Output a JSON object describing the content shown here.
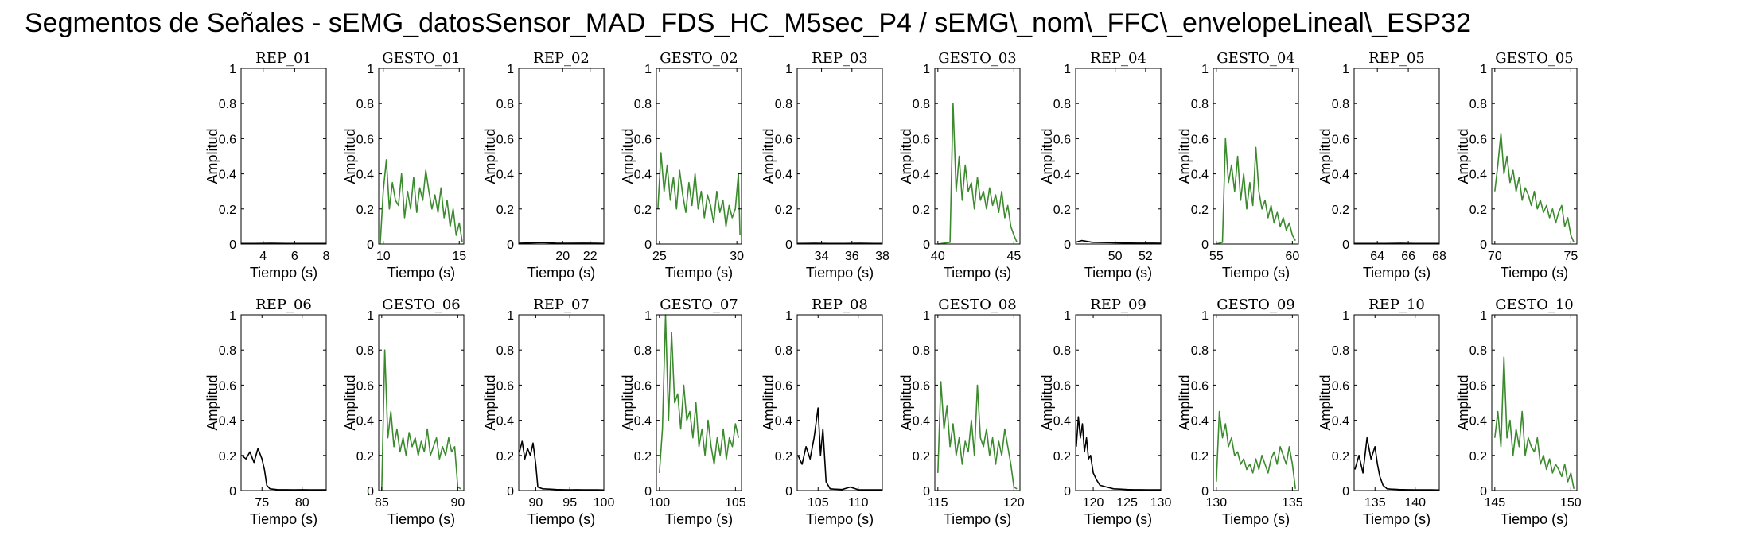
{
  "title": "Segmentos de Señales - sEMG_datosSensor_MAD_FDS_HC_M5sec_P4 / sEMG\\_nom\\_FFC\\_envelopeLineal\\_ESP32",
  "colors": {
    "rep": "#000000",
    "gesto": "#3b8a2e",
    "axes": "#000000"
  },
  "chart_data": [
    {
      "type": "line",
      "title": "REP_01",
      "xlabel": "Tiempo (s)",
      "ylabel": "Amplitud",
      "xlim": [
        2.6,
        8
      ],
      "xticks": [
        4,
        6,
        8
      ],
      "ylim": [
        0,
        1
      ],
      "yticks": [
        0,
        0.2,
        0.4,
        0.6,
        0.8,
        1
      ],
      "color": "rep",
      "x": [
        2.6,
        3.5,
        4.5,
        5.5,
        6.5,
        7.5,
        8
      ],
      "y": [
        0.003,
        0.003,
        0.004,
        0.003,
        0.003,
        0.003,
        0.003
      ]
    },
    {
      "type": "line",
      "title": "GESTO_01",
      "xlabel": "Tiempo (s)",
      "ylabel": "Amplitud",
      "xlim": [
        9.7,
        15.3
      ],
      "xticks": [
        10,
        15
      ],
      "ylim": [
        0,
        1
      ],
      "yticks": [
        0,
        0.2,
        0.4,
        0.6,
        0.8,
        1
      ],
      "color": "gesto",
      "x": [
        9.8,
        10,
        10.2,
        10.4,
        10.6,
        10.8,
        11,
        11.2,
        11.4,
        11.6,
        11.8,
        12,
        12.2,
        12.4,
        12.6,
        12.8,
        13,
        13.2,
        13.4,
        13.6,
        13.8,
        14,
        14.2,
        14.4,
        14.6,
        14.8,
        15,
        15.2
      ],
      "y": [
        0,
        0.3,
        0.48,
        0.2,
        0.35,
        0.25,
        0.22,
        0.4,
        0.15,
        0.3,
        0.2,
        0.38,
        0.18,
        0.32,
        0.25,
        0.42,
        0.3,
        0.2,
        0.28,
        0.18,
        0.32,
        0.15,
        0.25,
        0.1,
        0.2,
        0.05,
        0.12,
        0.01
      ]
    },
    {
      "type": "line",
      "title": "REP_02",
      "xlabel": "Tiempo (s)",
      "ylabel": "Amplitud",
      "xlim": [
        16.8,
        23
      ],
      "xticks": [
        20,
        22
      ],
      "ylim": [
        0,
        1
      ],
      "yticks": [
        0,
        0.2,
        0.4,
        0.6,
        0.8,
        1
      ],
      "color": "rep",
      "x": [
        16.8,
        17.5,
        18.5,
        19.5,
        20.5,
        21.5,
        22.5,
        23
      ],
      "y": [
        0.004,
        0.006,
        0.008,
        0.005,
        0.004,
        0.005,
        0.004,
        0.003
      ]
    },
    {
      "type": "line",
      "title": "GESTO_02",
      "xlabel": "Tiempo (s)",
      "ylabel": "Amplitud",
      "xlim": [
        24.8,
        30.3
      ],
      "xticks": [
        25,
        30
      ],
      "ylim": [
        0,
        1
      ],
      "yticks": [
        0,
        0.2,
        0.4,
        0.6,
        0.8,
        1
      ],
      "color": "gesto",
      "x": [
        24.9,
        25.1,
        25.3,
        25.5,
        25.7,
        25.9,
        26.1,
        26.3,
        26.5,
        26.7,
        26.9,
        27.1,
        27.3,
        27.5,
        27.7,
        27.9,
        28.1,
        28.3,
        28.5,
        28.7,
        28.9,
        29.1,
        29.3,
        29.5,
        29.7,
        29.9,
        30.1,
        30.2
      ],
      "y": [
        0.2,
        0.52,
        0.3,
        0.45,
        0.25,
        0.38,
        0.2,
        0.42,
        0.28,
        0.18,
        0.35,
        0.22,
        0.4,
        0.2,
        0.3,
        0.15,
        0.28,
        0.22,
        0.12,
        0.3,
        0.18,
        0.25,
        0.1,
        0.22,
        0.15,
        0.2,
        0.4,
        0.05
      ]
    },
    {
      "type": "line",
      "title": "REP_03",
      "xlabel": "Tiempo (s)",
      "ylabel": "Amplitud",
      "xlim": [
        32.4,
        38
      ],
      "xticks": [
        34,
        36,
        38
      ],
      "ylim": [
        0,
        1
      ],
      "yticks": [
        0,
        0.2,
        0.4,
        0.6,
        0.8,
        1
      ],
      "color": "rep",
      "x": [
        32.4,
        33.5,
        34.5,
        35.5,
        36.5,
        37.5,
        38
      ],
      "y": [
        0.003,
        0.004,
        0.003,
        0.003,
        0.004,
        0.003,
        0.003
      ]
    },
    {
      "type": "line",
      "title": "GESTO_03",
      "xlabel": "Tiempo (s)",
      "ylabel": "Amplitud",
      "xlim": [
        39.8,
        45.4
      ],
      "xticks": [
        40,
        45
      ],
      "ylim": [
        0,
        1
      ],
      "yticks": [
        0,
        0.2,
        0.4,
        0.6,
        0.8,
        1
      ],
      "color": "gesto",
      "x": [
        40,
        40.8,
        41,
        41.2,
        41.4,
        41.6,
        41.8,
        42,
        42.2,
        42.4,
        42.6,
        42.8,
        43,
        43.2,
        43.4,
        43.6,
        43.8,
        44,
        44.2,
        44.4,
        44.6,
        44.8,
        45,
        45.2
      ],
      "y": [
        0,
        0.01,
        0.8,
        0.3,
        0.5,
        0.25,
        0.45,
        0.3,
        0.35,
        0.2,
        0.38,
        0.25,
        0.3,
        0.2,
        0.32,
        0.22,
        0.28,
        0.18,
        0.3,
        0.15,
        0.22,
        0.1,
        0.05,
        0.01
      ]
    },
    {
      "type": "line",
      "title": "REP_04",
      "xlabel": "Tiempo (s)",
      "ylabel": "Amplitud",
      "xlim": [
        47.4,
        53
      ],
      "xticks": [
        50,
        52
      ],
      "ylim": [
        0,
        1
      ],
      "yticks": [
        0,
        0.2,
        0.4,
        0.6,
        0.8,
        1
      ],
      "color": "rep",
      "x": [
        47.4,
        47.8,
        48.5,
        49.5,
        50.5,
        51.5,
        52.5,
        53
      ],
      "y": [
        0.01,
        0.02,
        0.01,
        0.008,
        0.006,
        0.005,
        0.005,
        0.004
      ]
    },
    {
      "type": "line",
      "title": "GESTO_04",
      "xlabel": "Tiempo (s)",
      "ylabel": "Amplitud",
      "xlim": [
        54.8,
        60.4
      ],
      "xticks": [
        55,
        60
      ],
      "ylim": [
        0,
        1
      ],
      "yticks": [
        0,
        0.2,
        0.4,
        0.6,
        0.8,
        1
      ],
      "color": "gesto",
      "x": [
        55,
        55.4,
        55.6,
        55.8,
        56,
        56.2,
        56.4,
        56.6,
        56.8,
        57,
        57.2,
        57.4,
        57.6,
        57.8,
        58,
        58.2,
        58.4,
        58.6,
        58.8,
        59,
        59.2,
        59.4,
        59.6,
        59.8,
        60,
        60.2
      ],
      "y": [
        0,
        0.01,
        0.6,
        0.35,
        0.45,
        0.3,
        0.5,
        0.25,
        0.4,
        0.2,
        0.35,
        0.22,
        0.55,
        0.3,
        0.2,
        0.25,
        0.15,
        0.22,
        0.12,
        0.18,
        0.1,
        0.15,
        0.08,
        0.12,
        0.05,
        0.02
      ]
    },
    {
      "type": "line",
      "title": "REP_05",
      "xlabel": "Tiempo (s)",
      "ylabel": "Amplitud",
      "xlim": [
        62.5,
        68
      ],
      "xticks": [
        64,
        66,
        68
      ],
      "ylim": [
        0,
        1
      ],
      "yticks": [
        0,
        0.2,
        0.4,
        0.6,
        0.8,
        1
      ],
      "color": "rep",
      "x": [
        62.5,
        63.5,
        64.5,
        65.5,
        66.5,
        67.5,
        68
      ],
      "y": [
        0.003,
        0.003,
        0.003,
        0.004,
        0.003,
        0.003,
        0.003
      ]
    },
    {
      "type": "line",
      "title": "GESTO_05",
      "xlabel": "Tiempo (s)",
      "ylabel": "Amplitud",
      "xlim": [
        69.8,
        75.4
      ],
      "xticks": [
        70,
        75
      ],
      "ylim": [
        0,
        1
      ],
      "yticks": [
        0,
        0.2,
        0.4,
        0.6,
        0.8,
        1
      ],
      "color": "gesto",
      "x": [
        70,
        70.2,
        70.4,
        70.6,
        70.8,
        71,
        71.2,
        71.4,
        71.6,
        71.8,
        72,
        72.2,
        72.4,
        72.6,
        72.8,
        73,
        73.2,
        73.4,
        73.6,
        73.8,
        74,
        74.2,
        74.4,
        74.6,
        74.8,
        75,
        75.2
      ],
      "y": [
        0.3,
        0.45,
        0.63,
        0.4,
        0.5,
        0.35,
        0.42,
        0.3,
        0.38,
        0.25,
        0.32,
        0.28,
        0.22,
        0.3,
        0.2,
        0.25,
        0.18,
        0.22,
        0.15,
        0.2,
        0.12,
        0.18,
        0.22,
        0.1,
        0.15,
        0.05,
        0.01
      ]
    },
    {
      "type": "line",
      "title": "REP_06",
      "xlabel": "Tiempo (s)",
      "ylabel": "Amplitud",
      "xlim": [
        72.4,
        83
      ],
      "xticks": [
        75,
        80
      ],
      "ylim": [
        0,
        1
      ],
      "yticks": [
        0,
        0.2,
        0.4,
        0.6,
        0.8,
        1
      ],
      "color": "rep",
      "x": [
        72.5,
        73,
        73.5,
        74,
        74.5,
        75,
        75.3,
        75.6,
        76,
        77,
        78,
        79,
        80,
        81,
        82,
        83
      ],
      "y": [
        0.2,
        0.18,
        0.22,
        0.16,
        0.24,
        0.18,
        0.12,
        0.03,
        0.01,
        0.005,
        0.005,
        0.004,
        0.005,
        0.004,
        0.004,
        0.004
      ]
    },
    {
      "type": "line",
      "title": "GESTO_06",
      "xlabel": "Tiempo (s)",
      "ylabel": "Amplitud",
      "xlim": [
        84.8,
        90.4
      ],
      "xticks": [
        85,
        90
      ],
      "ylim": [
        0,
        1
      ],
      "yticks": [
        0,
        0.2,
        0.4,
        0.6,
        0.8,
        1
      ],
      "color": "gesto",
      "x": [
        85,
        85.2,
        85.4,
        85.6,
        85.8,
        86,
        86.2,
        86.4,
        86.6,
        86.8,
        87,
        87.2,
        87.4,
        87.6,
        87.8,
        88,
        88.2,
        88.4,
        88.6,
        88.8,
        89,
        89.2,
        89.4,
        89.6,
        89.8,
        90,
        90.2
      ],
      "y": [
        0,
        0.8,
        0.3,
        0.45,
        0.25,
        0.35,
        0.22,
        0.3,
        0.2,
        0.33,
        0.25,
        0.3,
        0.2,
        0.28,
        0.22,
        0.35,
        0.2,
        0.25,
        0.3,
        0.18,
        0.25,
        0.2,
        0.3,
        0.22,
        0.25,
        0.02,
        0.01
      ]
    },
    {
      "type": "line",
      "title": "REP_07",
      "xlabel": "Tiempo (s)",
      "ylabel": "Amplitud",
      "xlim": [
        87.5,
        100
      ],
      "xticks": [
        90,
        95,
        100
      ],
      "ylim": [
        0,
        1
      ],
      "yticks": [
        0,
        0.2,
        0.4,
        0.6,
        0.8,
        1
      ],
      "color": "rep",
      "x": [
        87.6,
        88,
        88.4,
        88.8,
        89.2,
        89.6,
        90,
        90.3,
        91,
        92,
        93,
        94,
        95,
        96,
        97,
        98,
        99,
        100
      ],
      "y": [
        0.22,
        0.28,
        0.18,
        0.24,
        0.2,
        0.27,
        0.15,
        0.02,
        0.01,
        0.008,
        0.006,
        0.005,
        0.004,
        0.005,
        0.004,
        0.004,
        0.004,
        0.003
      ]
    },
    {
      "type": "line",
      "title": "GESTO_07",
      "xlabel": "Tiempo (s)",
      "ylabel": "Amplitud",
      "xlim": [
        99.8,
        105.4
      ],
      "xticks": [
        100,
        105
      ],
      "ylim": [
        0,
        1
      ],
      "yticks": [
        0,
        0.2,
        0.4,
        0.6,
        0.8,
        1
      ],
      "color": "gesto",
      "x": [
        100,
        100.2,
        100.4,
        100.6,
        100.8,
        101,
        101.2,
        101.4,
        101.6,
        101.8,
        102,
        102.2,
        102.4,
        102.6,
        102.8,
        103,
        103.2,
        103.4,
        103.6,
        103.8,
        104,
        104.2,
        104.4,
        104.6,
        104.8,
        105,
        105.2
      ],
      "y": [
        0.1,
        0.35,
        1.0,
        0.4,
        0.9,
        0.5,
        0.55,
        0.35,
        0.6,
        0.4,
        0.45,
        0.3,
        0.5,
        0.25,
        0.35,
        0.2,
        0.4,
        0.25,
        0.15,
        0.3,
        0.2,
        0.35,
        0.18,
        0.3,
        0.25,
        0.38,
        0.3
      ]
    },
    {
      "type": "line",
      "title": "REP_08",
      "xlabel": "Tiempo (s)",
      "ylabel": "Amplitud",
      "xlim": [
        102.4,
        113
      ],
      "xticks": [
        105,
        110
      ],
      "ylim": [
        0,
        1
      ],
      "yticks": [
        0,
        0.2,
        0.4,
        0.6,
        0.8,
        1
      ],
      "color": "rep",
      "x": [
        102.5,
        103,
        103.5,
        104,
        104.5,
        105,
        105.3,
        105.6,
        106,
        106.5,
        107,
        108,
        109,
        110,
        111,
        112,
        113
      ],
      "y": [
        0.2,
        0.15,
        0.25,
        0.18,
        0.3,
        0.47,
        0.2,
        0.35,
        0.05,
        0.01,
        0.008,
        0.006,
        0.02,
        0.005,
        0.004,
        0.004,
        0.004
      ]
    },
    {
      "type": "line",
      "title": "GESTO_08",
      "xlabel": "Tiempo (s)",
      "ylabel": "Amplitud",
      "xlim": [
        114.8,
        120.4
      ],
      "xticks": [
        115,
        120
      ],
      "ylim": [
        0,
        1
      ],
      "yticks": [
        0,
        0.2,
        0.4,
        0.6,
        0.8,
        1
      ],
      "color": "gesto",
      "x": [
        115,
        115.2,
        115.4,
        115.6,
        115.8,
        116,
        116.2,
        116.4,
        116.6,
        116.8,
        117,
        117.2,
        117.4,
        117.6,
        117.8,
        118,
        118.2,
        118.4,
        118.6,
        118.8,
        119,
        119.2,
        119.4,
        119.6,
        119.8,
        120,
        120.2
      ],
      "y": [
        0.1,
        0.62,
        0.35,
        0.48,
        0.25,
        0.38,
        0.2,
        0.3,
        0.15,
        0.28,
        0.22,
        0.4,
        0.2,
        0.6,
        0.3,
        0.25,
        0.35,
        0.2,
        0.3,
        0.15,
        0.28,
        0.2,
        0.35,
        0.25,
        0.15,
        0.02,
        0.01
      ]
    },
    {
      "type": "line",
      "title": "REP_09",
      "xlabel": "Tiempo (s)",
      "ylabel": "Amplitud",
      "xlim": [
        117.4,
        130
      ],
      "xticks": [
        120,
        125,
        130
      ],
      "ylim": [
        0,
        1
      ],
      "yticks": [
        0,
        0.2,
        0.4,
        0.6,
        0.8,
        1
      ],
      "color": "rep",
      "x": [
        117.5,
        117.8,
        118.1,
        118.4,
        118.7,
        119,
        119.3,
        119.6,
        120,
        120.5,
        121,
        122,
        123,
        124,
        125,
        126,
        127,
        128,
        129,
        130
      ],
      "y": [
        0.25,
        0.42,
        0.3,
        0.38,
        0.22,
        0.3,
        0.18,
        0.2,
        0.1,
        0.06,
        0.03,
        0.02,
        0.01,
        0.008,
        0.006,
        0.005,
        0.005,
        0.004,
        0.004,
        0.004
      ]
    },
    {
      "type": "line",
      "title": "GESTO_09",
      "xlabel": "Tiempo (s)",
      "ylabel": "Amplitud",
      "xlim": [
        129.8,
        135.4
      ],
      "xticks": [
        130,
        135
      ],
      "ylim": [
        0,
        1
      ],
      "yticks": [
        0,
        0.2,
        0.4,
        0.6,
        0.8,
        1
      ],
      "color": "gesto",
      "x": [
        130,
        130.2,
        130.4,
        130.6,
        130.8,
        131,
        131.2,
        131.4,
        131.6,
        131.8,
        132,
        132.2,
        132.4,
        132.6,
        132.8,
        133,
        133.2,
        133.4,
        133.6,
        133.8,
        134,
        134.2,
        134.4,
        134.6,
        134.8,
        135,
        135.2
      ],
      "y": [
        0.05,
        0.45,
        0.3,
        0.38,
        0.25,
        0.3,
        0.2,
        0.22,
        0.15,
        0.18,
        0.12,
        0.15,
        0.1,
        0.18,
        0.12,
        0.2,
        0.15,
        0.1,
        0.18,
        0.22,
        0.15,
        0.25,
        0.2,
        0.15,
        0.25,
        0.15,
        0.01
      ]
    },
    {
      "type": "line",
      "title": "REP_10",
      "xlabel": "Tiempo (s)",
      "ylabel": "Amplitud",
      "xlim": [
        132.4,
        143
      ],
      "xticks": [
        135,
        140
      ],
      "ylim": [
        0,
        1
      ],
      "yticks": [
        0,
        0.2,
        0.4,
        0.6,
        0.8,
        1
      ],
      "color": "rep",
      "x": [
        132.5,
        133,
        133.5,
        134,
        134.5,
        135,
        135.3,
        135.6,
        136,
        136.5,
        137,
        138,
        139,
        140,
        141,
        142,
        143
      ],
      "y": [
        0.12,
        0.2,
        0.1,
        0.3,
        0.18,
        0.25,
        0.15,
        0.08,
        0.03,
        0.01,
        0.008,
        0.006,
        0.005,
        0.004,
        0.004,
        0.004,
        0.003
      ]
    },
    {
      "type": "line",
      "title": "GESTO_10",
      "xlabel": "Tiempo (s)",
      "ylabel": "Amplitud",
      "xlim": [
        144.8,
        150.4
      ],
      "xticks": [
        145,
        150
      ],
      "ylim": [
        0,
        1
      ],
      "yticks": [
        0,
        0.2,
        0.4,
        0.6,
        0.8,
        1
      ],
      "color": "gesto",
      "x": [
        145,
        145.2,
        145.4,
        145.6,
        145.8,
        146,
        146.2,
        146.4,
        146.6,
        146.8,
        147,
        147.2,
        147.4,
        147.6,
        147.8,
        148,
        148.2,
        148.4,
        148.6,
        148.8,
        149,
        149.2,
        149.4,
        149.6,
        149.8,
        150,
        150.2
      ],
      "y": [
        0.3,
        0.45,
        0.25,
        0.76,
        0.3,
        0.4,
        0.2,
        0.35,
        0.25,
        0.45,
        0.2,
        0.3,
        0.25,
        0.22,
        0.3,
        0.15,
        0.2,
        0.12,
        0.18,
        0.1,
        0.15,
        0.12,
        0.08,
        0.15,
        0.05,
        0.1,
        0.01
      ]
    }
  ]
}
